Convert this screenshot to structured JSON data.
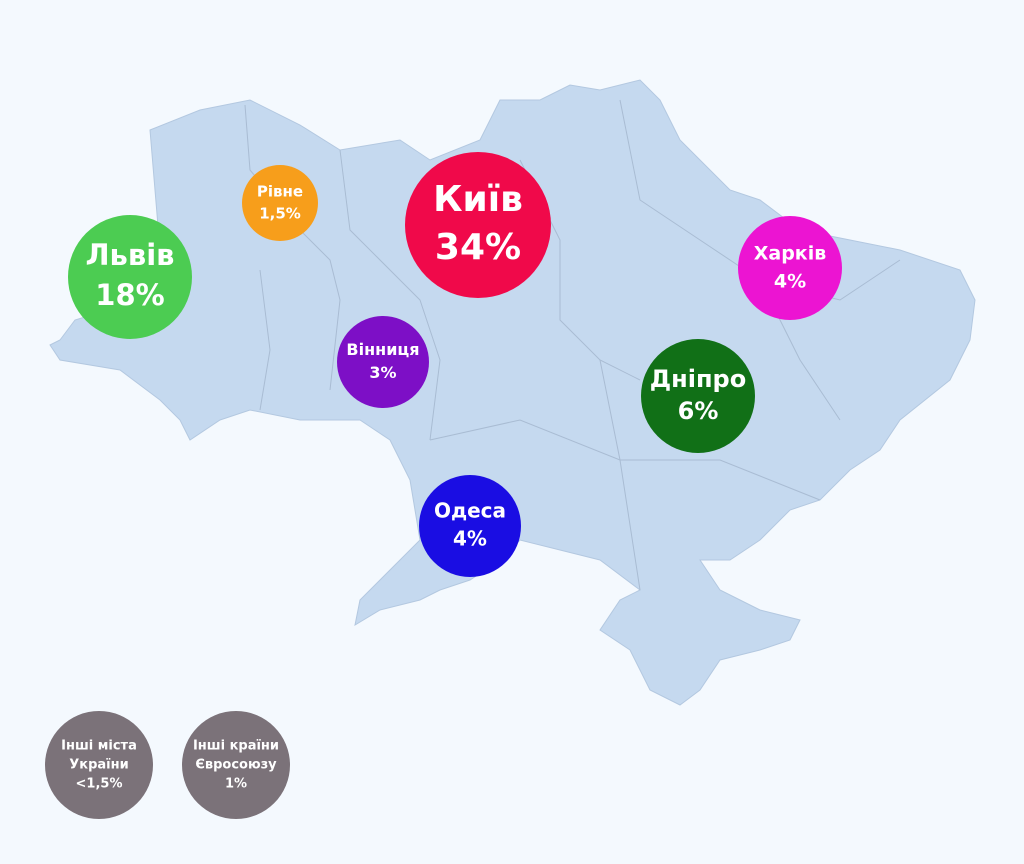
{
  "bubbles": [
    {
      "lines": [
        "Київ",
        "34%"
      ],
      "color": "#f0094a"
    },
    {
      "lines": [
        "Львів",
        "18%"
      ],
      "color": "#4ccc52"
    },
    {
      "lines": [
        "Рівне",
        "1,5%"
      ],
      "color": "#f79e1b"
    },
    {
      "lines": [
        "Харків",
        "4%"
      ],
      "color": "#ec14d2"
    },
    {
      "lines": [
        "Вінниця",
        "3%"
      ],
      "color": "#7d0fc6"
    },
    {
      "lines": [
        "Дніпро",
        "6%"
      ],
      "color": "#117017"
    },
    {
      "lines": [
        "Одеса",
        "4%"
      ],
      "color": "#1a0de3"
    },
    {
      "lines": [
        "Інші міста",
        "України",
        "<1,5%"
      ],
      "color": "#7b7279"
    },
    {
      "lines": [
        "Інші країни",
        "Євросоюзу",
        "1%"
      ],
      "color": "#7b7279"
    }
  ]
}
